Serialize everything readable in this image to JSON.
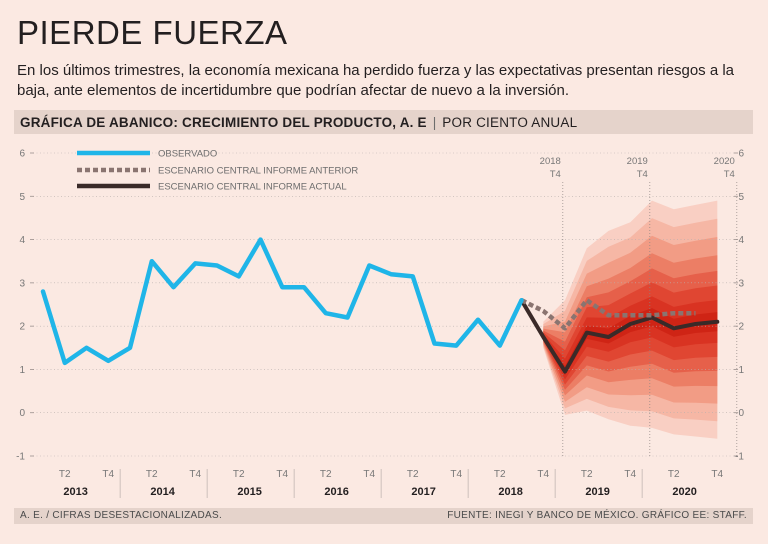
{
  "header": {
    "title": "PIERDE FUERZA",
    "subtitle": "En los últimos trimestres, la economía mexicana ha perdido fuerza y las expectativas presentan riesgos a la baja, ante elementos de incertidumbre que podrían afectar de nuevo a la inversión.",
    "chart_title": "GRÁFICA DE ABANICO: CRECIMIENTO DEL PRODUCTO, A. E",
    "chart_unit": "POR CIENTO ANUAL"
  },
  "footer": {
    "note": "A. E. / CIFRAS DESESTACIONALIZADAS.",
    "source": "FUENTE: INEGI Y BANCO DE MÉXICO. GRÁFICO EE: STAFF."
  },
  "colors": {
    "observed": "#1fb5e8",
    "scenario_previous": "#8a7470",
    "scenario_current": "#3a2a28",
    "fan_inner": "#d62718",
    "background": "#fbe9e2"
  },
  "chart_data": {
    "type": "line",
    "title": "GRÁFICA DE ABANICO: CRECIMIENTO DEL PRODUCTO, A. E",
    "ylabel": "POR CIENTO ANUAL",
    "ylim": [
      -1,
      6
    ],
    "yticks": [
      "-1",
      "0",
      "1",
      "2",
      "3",
      "4",
      "5",
      "6"
    ],
    "quarter_ticks": [
      "T2",
      "T4",
      "T2",
      "T4",
      "T2",
      "T4",
      "T2",
      "T4",
      "T2",
      "T4",
      "T2",
      "T4",
      "T2",
      "T4",
      "T2",
      "T4"
    ],
    "years": [
      "2013",
      "2014",
      "2015",
      "2016",
      "2017",
      "2018",
      "2019",
      "2020"
    ],
    "markers": [
      {
        "year": "2018",
        "quarter": "T4"
      },
      {
        "year": "2019",
        "quarter": "T4"
      },
      {
        "year": "2020",
        "quarter": "T4"
      }
    ],
    "series": [
      {
        "name": "OBSERVADO",
        "start": "2013T1",
        "values": [
          2.8,
          1.15,
          1.5,
          1.2,
          1.5,
          3.5,
          2.9,
          3.45,
          3.4,
          3.15,
          4.0,
          2.9,
          2.9,
          2.3,
          2.2,
          3.4,
          3.2,
          3.15,
          1.6,
          1.55,
          2.15,
          1.55,
          2.6
        ]
      },
      {
        "name": "ESCENARIO CENTRAL INFORME ANTERIOR",
        "start": "2018T3",
        "values": [
          2.6,
          2.35,
          1.95,
          2.6,
          2.25,
          2.25,
          2.25,
          2.3,
          2.3
        ]
      },
      {
        "name": "ESCENARIO CENTRAL INFORME ACTUAL",
        "start": "2018T3",
        "values": [
          2.6,
          1.75,
          0.95,
          1.85,
          1.75,
          2.05,
          2.2,
          1.95,
          2.05,
          2.1
        ]
      }
    ],
    "fan_chart": {
      "start": "2018T4",
      "center": [
        1.75,
        0.95,
        1.85,
        1.75,
        2.05,
        2.2,
        1.95,
        2.05,
        2.1
      ],
      "outer_upper": [
        2.1,
        2.6,
        3.8,
        4.2,
        4.4,
        4.9,
        4.7,
        4.8,
        4.9
      ],
      "outer_lower": [
        1.5,
        -0.05,
        0.05,
        -0.15,
        -0.3,
        -0.35,
        -0.5,
        -0.55,
        -0.6
      ]
    }
  }
}
